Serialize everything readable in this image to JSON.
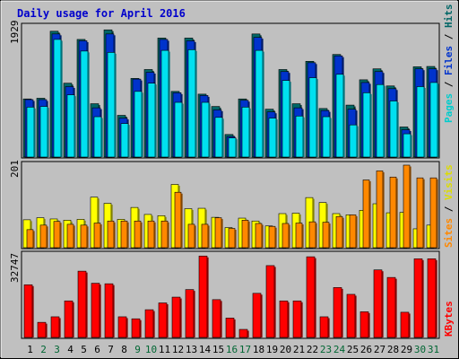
{
  "chart_data": {
    "type": "bar",
    "title": "Daily usage for April 2016",
    "categories": [
      "1",
      "2",
      "3",
      "4",
      "5",
      "6",
      "7",
      "8",
      "9",
      "10",
      "11",
      "12",
      "13",
      "14",
      "15",
      "16",
      "17",
      "18",
      "19",
      "20",
      "21",
      "22",
      "23",
      "24",
      "25",
      "26",
      "27",
      "28",
      "29",
      "30",
      "31"
    ],
    "weekend_days": [
      "2",
      "3",
      "9",
      "10",
      "16",
      "17",
      "23",
      "24",
      "30",
      "31"
    ],
    "colors": {
      "hits": "#006666",
      "files": "#0033cc",
      "pages": "#00e0f0",
      "visits": "#ffff00",
      "sites": "#ff8800",
      "kbytes": "#ff0000",
      "weekday_label": "#000000",
      "weekend_label": "#006633"
    },
    "panels": [
      {
        "id": "top",
        "ymax_label": "1929",
        "legend": [
          "Pages",
          "/",
          "Files",
          "/",
          "Hits"
        ],
        "series": [
          {
            "name": "Hits",
            "values": [
              850,
              860,
              1840,
              1080,
              1720,
              780,
              1860,
              610,
              1150,
              1280,
              1740,
              960,
              1740,
              920,
              740,
              330,
              850,
              1800,
              700,
              1280,
              780,
              1400,
              710,
              1500,
              760,
              1130,
              1290,
              1040,
              440,
              1320,
              1325
            ]
          },
          {
            "name": "Files",
            "values": [
              840,
              840,
              1800,
              1030,
              1700,
              720,
              1800,
              570,
              1140,
              1240,
              1720,
              940,
              1700,
              900,
              690,
              300,
              830,
              1750,
              660,
              1250,
              720,
              1380,
              680,
              1480,
              700,
              1090,
              1250,
              1000,
              400,
              1290,
              1290
            ]
          },
          {
            "name": "Pages",
            "values": [
              730,
              740,
              1720,
              910,
              1550,
              590,
              1530,
              490,
              960,
              1080,
              1560,
              800,
              1570,
              800,
              580,
              280,
              730,
              1560,
              570,
              1120,
              600,
              1160,
              590,
              1210,
              470,
              940,
              1060,
              820,
              340,
              1030,
              1090
            ]
          }
        ]
      },
      {
        "id": "mid",
        "ymax_label": "201",
        "legend": [
          "Sites",
          "/",
          "Visits"
        ],
        "series": [
          {
            "name": "Visits",
            "values": [
              68,
              73,
              70,
              67,
              69,
              123,
              108,
              69,
              98,
              81,
              78,
              154,
              95,
              96,
              74,
              49,
              72,
              65,
              53,
              83,
              84,
              122,
              110,
              83,
              80,
              91,
              107,
              85,
              86,
              46,
              55
            ]
          },
          {
            "name": "Sites",
            "values": [
              44,
              55,
              64,
              57,
              55,
              60,
              65,
              65,
              65,
              65,
              65,
              135,
              57,
              57,
              73,
              47,
              67,
              59,
              52,
              59,
              60,
              63,
              62,
              76,
              80,
              165,
              187,
              172,
              201,
              170,
              170
            ]
          }
        ]
      },
      {
        "id": "bot",
        "ymax_label": "32747",
        "legend": [
          "KBytes"
        ],
        "series": [
          {
            "name": "KBytes",
            "values": [
              20900,
              6000,
              8200,
              14500,
              26300,
              21500,
              21300,
              8200,
              7400,
              11000,
              13700,
              16000,
              19000,
              32300,
              15000,
              7700,
              3200,
              17500,
              28500,
              14500,
              14500,
              32000,
              8200,
              19800,
              17100,
              10200,
              26800,
              23800,
              10000,
              31200,
              31200
            ]
          }
        ]
      }
    ]
  }
}
